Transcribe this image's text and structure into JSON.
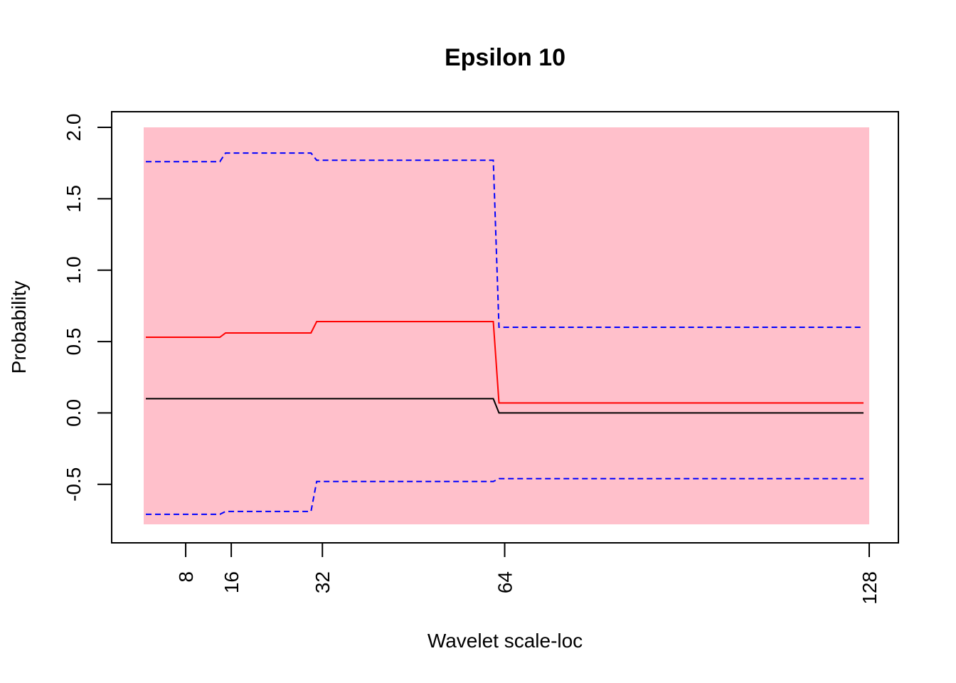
{
  "chart_data": {
    "type": "line",
    "title": "Epsilon 10",
    "xlabel": "Wavelet scale-loc",
    "ylabel": "Probability",
    "xlim": [
      0.5,
      128.5
    ],
    "ylim": [
      -0.8,
      2.0
    ],
    "xticks": [
      8,
      16,
      32,
      64,
      128
    ],
    "xtick_labels": [
      "8",
      "16",
      "32",
      "64",
      "128"
    ],
    "yticks": [
      -0.5,
      0.0,
      0.5,
      1.0,
      1.5,
      2.0
    ],
    "ytick_labels": [
      "-0.5",
      "0.0",
      "0.5",
      "1.0",
      "1.5",
      "2.0"
    ],
    "band": {
      "x": [
        1,
        128
      ],
      "y": [
        -0.78,
        2.0
      ],
      "color": "#ffc0cb"
    },
    "grid": false,
    "series": [
      {
        "style": "solid",
        "color": "#000000",
        "points": [
          [
            1,
            0.1
          ],
          [
            62,
            0.1
          ],
          [
            63,
            0.0
          ],
          [
            127,
            0.0
          ]
        ]
      },
      {
        "style": "solid",
        "color": "#ff0000",
        "points": [
          [
            1,
            0.53
          ],
          [
            14,
            0.53
          ],
          [
            15,
            0.56
          ],
          [
            30,
            0.56
          ],
          [
            31,
            0.64
          ],
          [
            62,
            0.64
          ],
          [
            63,
            0.07
          ],
          [
            127,
            0.07
          ]
        ]
      },
      {
        "style": "dashed",
        "color": "#0000ff",
        "points": [
          [
            1,
            1.76
          ],
          [
            14,
            1.76
          ],
          [
            15,
            1.82
          ],
          [
            30,
            1.82
          ],
          [
            31,
            1.77
          ],
          [
            62,
            1.77
          ],
          [
            63,
            0.6
          ],
          [
            127,
            0.6
          ]
        ]
      },
      {
        "style": "dashed",
        "color": "#0000ff",
        "points": [
          [
            1,
            -0.71
          ],
          [
            14,
            -0.71
          ],
          [
            15,
            -0.69
          ],
          [
            30,
            -0.69
          ],
          [
            31,
            -0.48
          ],
          [
            62,
            -0.48
          ],
          [
            63,
            -0.46
          ],
          [
            127,
            -0.46
          ]
        ]
      }
    ]
  }
}
